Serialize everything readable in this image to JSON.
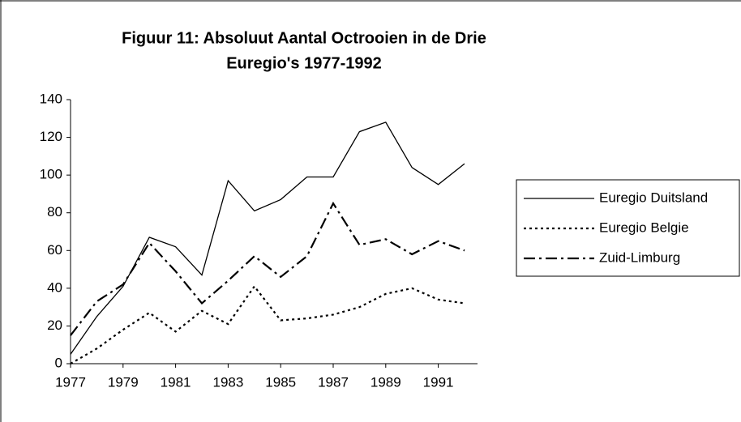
{
  "chart_data": {
    "type": "line",
    "title": [
      "Figuur 11: Absoluut Aantal Octrooien in de Drie",
      "Euregio's 1977-1992"
    ],
    "x": [
      1977,
      1978,
      1979,
      1980,
      1981,
      1982,
      1983,
      1984,
      1985,
      1986,
      1987,
      1988,
      1989,
      1990,
      1991,
      1992
    ],
    "series": [
      {
        "name": "Euregio Duitsland",
        "color": "#000000",
        "dash": "solid",
        "values": [
          5,
          25,
          41,
          67,
          62,
          47,
          97,
          81,
          87,
          99,
          99,
          123,
          128,
          104,
          95,
          106
        ]
      },
      {
        "name": "Euregio Belgie",
        "color": "#000000",
        "dash": "dotted",
        "values": [
          0,
          8,
          18,
          27,
          17,
          28,
          21,
          41,
          23,
          24,
          26,
          30,
          37,
          40,
          34,
          32
        ]
      },
      {
        "name": "Zuid-Limburg",
        "color": "#000000",
        "dash": "dashdot",
        "values": [
          15,
          33,
          42,
          64,
          49,
          32,
          44,
          57,
          46,
          57,
          85,
          63,
          66,
          58,
          65,
          60
        ]
      }
    ],
    "xlim": [
      1977,
      1992
    ],
    "xticks": [
      1977,
      1979,
      1981,
      1983,
      1985,
      1987,
      1989,
      1991
    ],
    "ylim": [
      0,
      140
    ],
    "yticks": [
      0,
      20,
      40,
      60,
      80,
      100,
      120,
      140
    ],
    "grid": false,
    "legend": "right"
  }
}
